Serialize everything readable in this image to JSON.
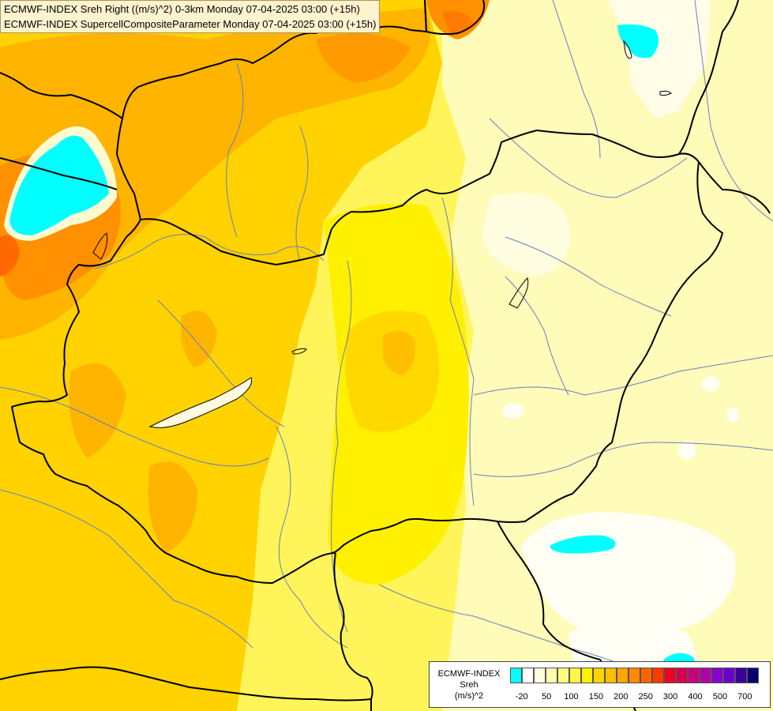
{
  "title_lines": [
    "ECMWF-INDEX Sreh Right ((m/s)^2) 0-3km Monday 07-04-2025 03:00 (+15h)",
    "ECMWF-INDEX SupercellCompositeParameter Monday 07-04-2025 03:00 (+15h)"
  ],
  "legend": {
    "title_line1": "ECMWF-INDEX",
    "title_line2": "Sreh",
    "title_line3": "(m/s)^2",
    "swatch_colors": [
      "#00ffff",
      "#ffffff",
      "#fffde0",
      "#fffcb0",
      "#fffa80",
      "#fff54a",
      "#fff000",
      "#ffd400",
      "#ffbe00",
      "#ffa400",
      "#ff8a00",
      "#ff6400",
      "#ff3a00",
      "#ee0020",
      "#d80050",
      "#c8007a",
      "#b000a8",
      "#8a00c8",
      "#6a00d0",
      "#3a0098",
      "#0a006e"
    ],
    "tick_labels": [
      "-20",
      "50",
      "100",
      "150",
      "200",
      "250",
      "300",
      "400",
      "500",
      "700"
    ]
  },
  "map_colors": {
    "pale": "#fffcc8",
    "light_yellow": "#fff68a",
    "yellow": "#ffee00",
    "bright_yellow": "#fff200",
    "gold": "#ffd000",
    "orange": "#ffb200",
    "dark_orange": "#ff9000",
    "red_orange": "#ff6600",
    "cyan": "#00ffff",
    "border": "#000000",
    "river": "#6a7fbf"
  }
}
